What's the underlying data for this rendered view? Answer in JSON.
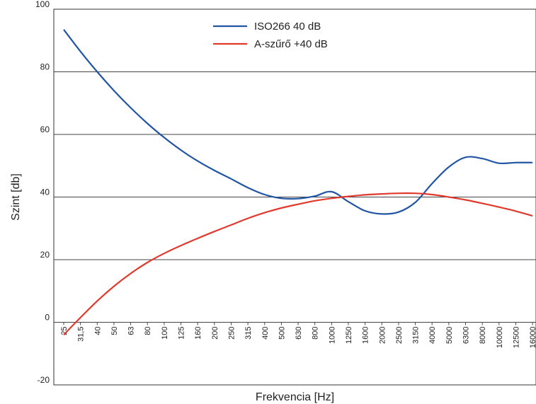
{
  "chart_data": {
    "type": "line",
    "xlabel": "Frekvencia [Hz]",
    "ylabel": "Szint [db]",
    "ylim": [
      -20,
      100
    ],
    "yticks": [
      "-20",
      "0",
      "20",
      "40",
      "60",
      "80",
      "100"
    ],
    "grid": "horizontal",
    "legend_position": "top-center",
    "categories": [
      "25",
      "31,5",
      "40",
      "50",
      "63",
      "80",
      "100",
      "125",
      "160",
      "200",
      "250",
      "315",
      "400",
      "500",
      "630",
      "800",
      "1000",
      "1250",
      "1600",
      "2000",
      "2500",
      "3150",
      "4000",
      "5000",
      "6300",
      "8000",
      "10000",
      "12500",
      "16000"
    ],
    "series": [
      {
        "name": "ISO266 40 dB",
        "color": "#2255a4",
        "values": [
          93.5,
          86.5,
          80,
          74,
          68.5,
          63.5,
          59,
          55,
          51.5,
          48.5,
          45.8,
          43,
          40.8,
          39.6,
          39.5,
          40.3,
          41.7,
          38.5,
          35.6,
          34.6,
          35.2,
          38.3,
          44.3,
          49.6,
          52.7,
          52.3,
          50.8,
          51,
          51
        ]
      },
      {
        "name": "A-szűrő +40 dB",
        "color": "#e03a2f",
        "values": [
          -4,
          1.5,
          6.8,
          11.5,
          15.6,
          19.1,
          22,
          24.5,
          26.8,
          29,
          31.1,
          33.2,
          35,
          36.5,
          37.7,
          38.8,
          39.6,
          40.2,
          40.7,
          41,
          41.2,
          41.2,
          40.8,
          40,
          39.1,
          38,
          36.8,
          35.5,
          34
        ]
      }
    ]
  }
}
